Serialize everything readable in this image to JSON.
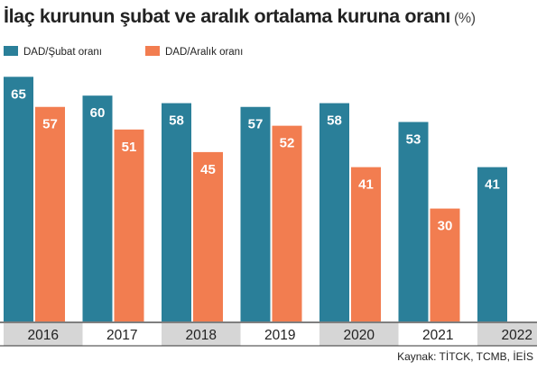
{
  "title": "İlaç kurunun şubat ve aralık ortalama kuruna oranı",
  "title_unit": "(%)",
  "source": "Kaynak: TİTCK, TCMB, İEİS",
  "chart_data": {
    "type": "bar",
    "categories": [
      "2016",
      "2017",
      "2018",
      "2019",
      "2020",
      "2021",
      "2022"
    ],
    "series": [
      {
        "name": "DAD/Şubat oranı",
        "color": "#2a7f99",
        "values": [
          65,
          60,
          58,
          57,
          58,
          53,
          41
        ]
      },
      {
        "name": "DAD/Aralık oranı",
        "color": "#f27d50",
        "values": [
          57,
          51,
          45,
          52,
          41,
          30,
          null
        ]
      }
    ],
    "ylim": [
      0,
      70
    ],
    "grid": false,
    "legend": "top-left"
  }
}
